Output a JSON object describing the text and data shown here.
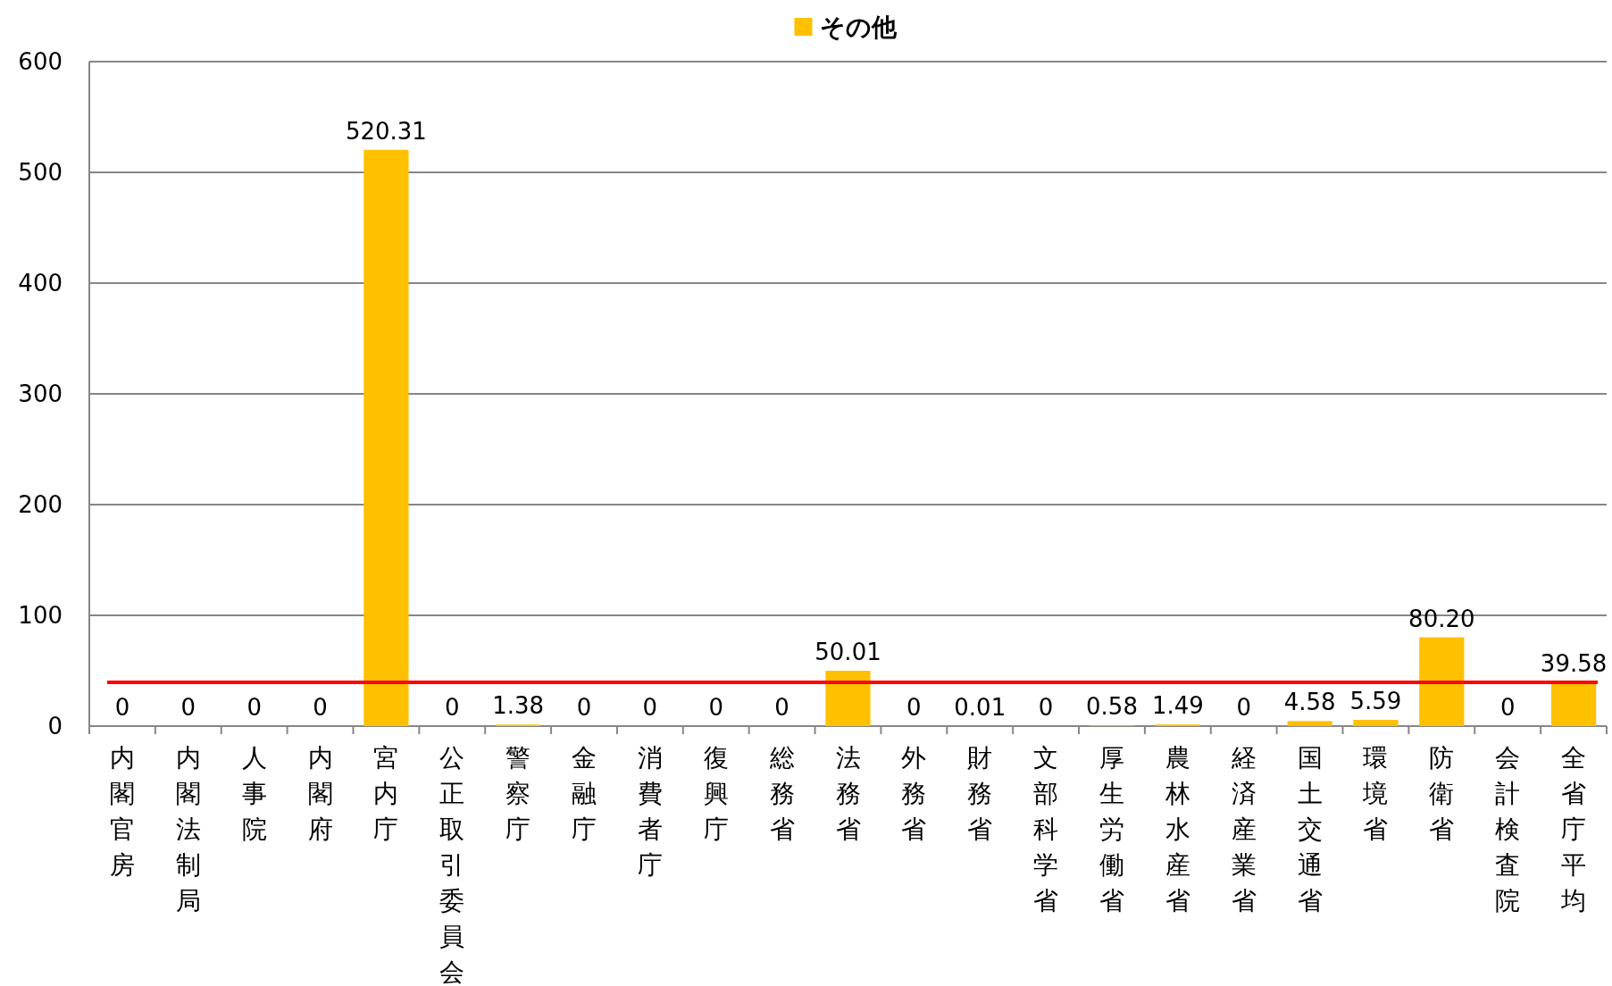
{
  "chart_data": {
    "type": "bar",
    "legend_title": null,
    "categories": [
      "内閣官房",
      "内閣法制局",
      "人事院",
      "内閣府",
      "宮内庁",
      "公正取引委員会",
      "警察庁",
      "金融庁",
      "消費者庁",
      "復興庁",
      "総務省",
      "法務省",
      "外務省",
      "財務省",
      "文部科学省",
      "厚生労働省",
      "農林水産省",
      "経済産業省",
      "国土交通省",
      "環境省",
      "防衛省",
      "会計検査院",
      "全省庁平均"
    ],
    "series": [
      {
        "name": "その他",
        "color": "#ffc000",
        "values": [
          0,
          0,
          0,
          0,
          520.31,
          0,
          1.38,
          0,
          0,
          0,
          0,
          50.01,
          0,
          0.01,
          0,
          0.58,
          1.49,
          0,
          4.58,
          5.59,
          80.2,
          0,
          39.58
        ],
        "value_labels": [
          "0",
          "0",
          "0",
          "0",
          "520.31",
          "0",
          "1.38",
          "0",
          "0",
          "0",
          "0",
          "50.01",
          "0",
          "0.01",
          "0",
          "0.58",
          "1.49",
          "0",
          "4.58",
          "5.59",
          "80.20",
          "0",
          "39.58"
        ]
      }
    ],
    "ylim": [
      0,
      600
    ],
    "yticks": [
      0,
      100,
      200,
      300,
      400,
      500,
      600
    ],
    "grid": "y",
    "legend": "top",
    "ref_lines": [
      {
        "axis": "y",
        "value": 39.58,
        "color": "#ff0000"
      }
    ]
  }
}
